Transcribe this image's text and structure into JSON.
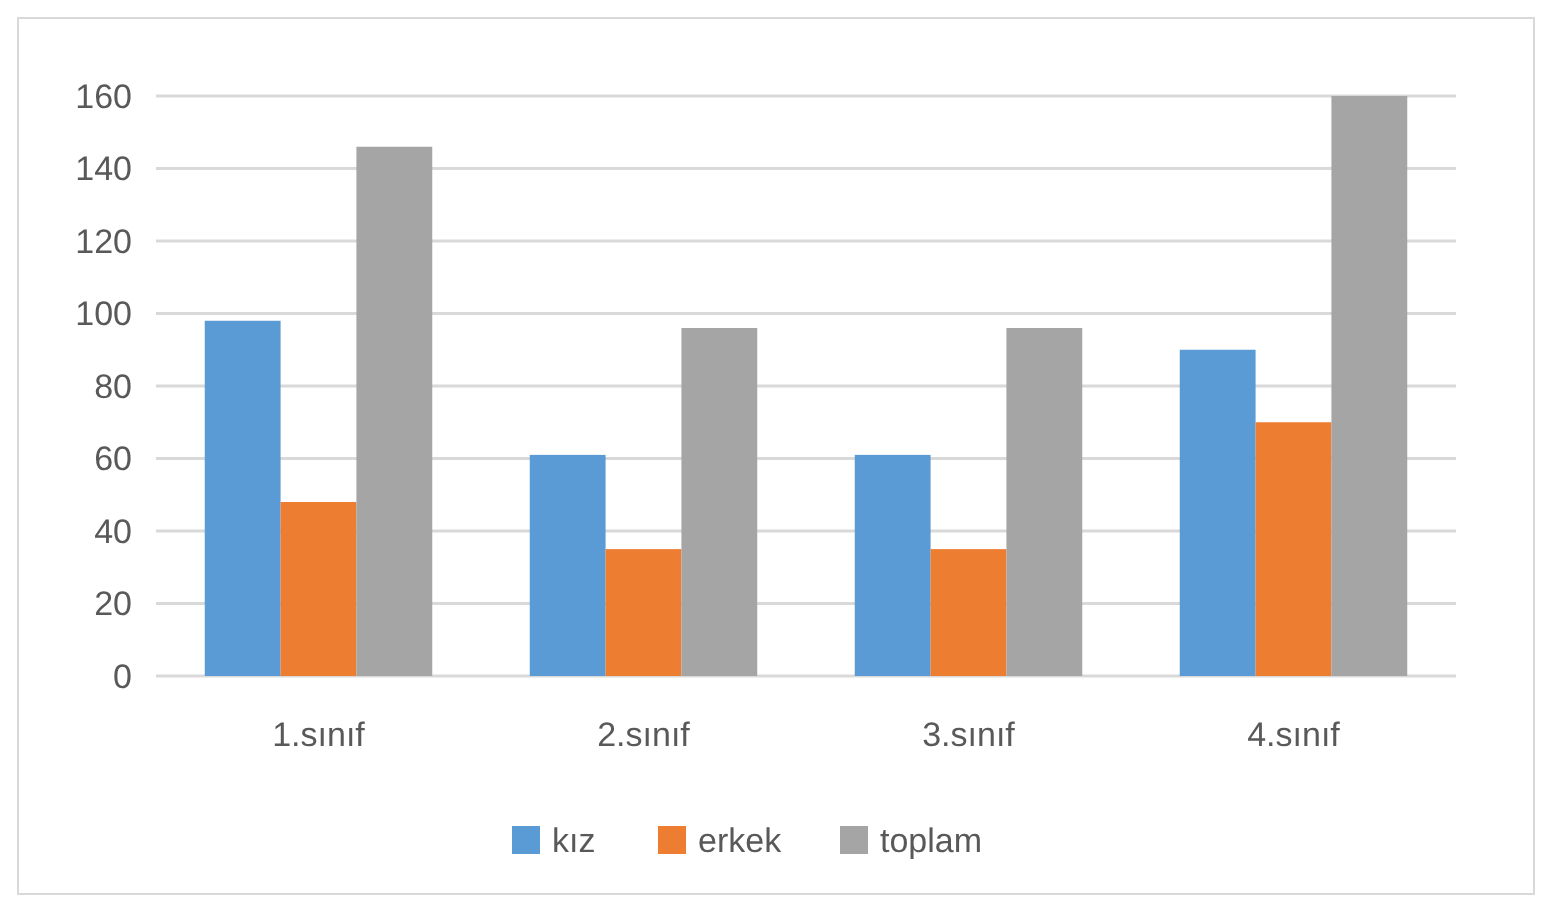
{
  "chart_data": {
    "type": "bar",
    "categories": [
      "1.sınıf",
      "2.sınıf",
      "3.sınıf",
      "4.sınıf"
    ],
    "series": [
      {
        "name": "kız",
        "color": "#5b9bd5",
        "values": [
          98,
          61,
          61,
          90
        ]
      },
      {
        "name": "erkek",
        "color": "#ed7d31",
        "values": [
          48,
          35,
          35,
          70
        ]
      },
      {
        "name": "toplam",
        "color": "#a5a5a5",
        "values": [
          146,
          96,
          96,
          160
        ]
      }
    ],
    "ylim": [
      0,
      160
    ],
    "yticks": [
      0,
      20,
      40,
      60,
      80,
      100,
      120,
      140,
      160
    ],
    "grid": "y",
    "legend": "bottom"
  }
}
